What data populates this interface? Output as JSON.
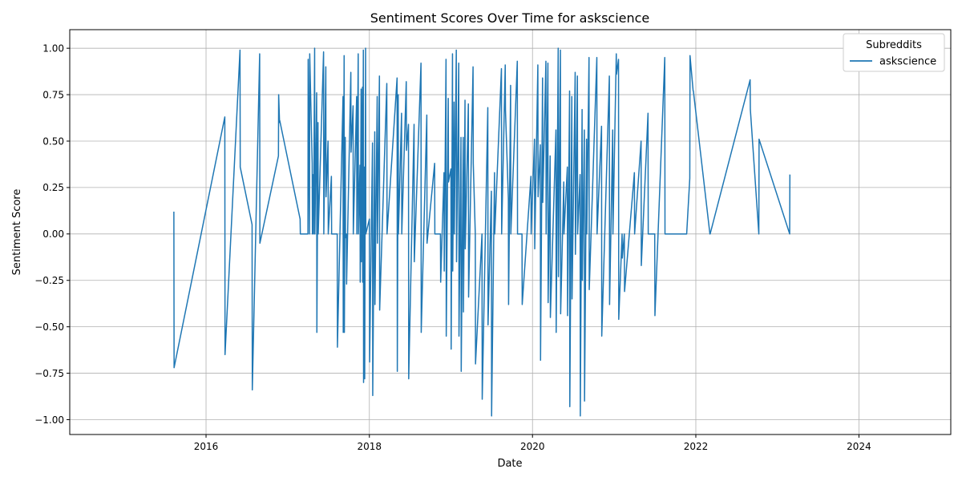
{
  "chart_data": {
    "type": "line",
    "title": "Sentiment Scores Over Time for askscience",
    "xlabel": "Date",
    "ylabel": "Sentiment Score",
    "x_axis": "date",
    "xlim": [
      "2014-05-01",
      "2025-02-15"
    ],
    "ylim": [
      -1.08,
      1.1
    ],
    "xticks": [
      {
        "value": "2016-01-01",
        "label": "2016"
      },
      {
        "value": "2018-01-01",
        "label": "2018"
      },
      {
        "value": "2020-01-01",
        "label": "2020"
      },
      {
        "value": "2022-01-01",
        "label": "2022"
      },
      {
        "value": "2024-01-01",
        "label": "2024"
      }
    ],
    "yticks": [
      {
        "value": -1.0,
        "label": "−1.00"
      },
      {
        "value": -0.75,
        "label": "−0.75"
      },
      {
        "value": -0.5,
        "label": "−0.50"
      },
      {
        "value": -0.25,
        "label": "−0.25"
      },
      {
        "value": 0.0,
        "label": "0.00"
      },
      {
        "value": 0.25,
        "label": "0.25"
      },
      {
        "value": 0.5,
        "label": "0.50"
      },
      {
        "value": 0.75,
        "label": "0.75"
      },
      {
        "value": 1.0,
        "label": "1.00"
      }
    ],
    "grid": true,
    "legend": {
      "title": "Subreddits",
      "placement": "top-right"
    },
    "series": [
      {
        "name": "askscience",
        "color": "#1f77b4",
        "points": [
          [
            "2015-08-10",
            0.12
          ],
          [
            "2015-08-11",
            -0.72
          ],
          [
            "2016-03-25",
            0.63
          ],
          [
            "2016-03-26",
            -0.65
          ],
          [
            "2016-06-01",
            0.99
          ],
          [
            "2016-06-02",
            0.36
          ],
          [
            "2016-07-25",
            0.05
          ],
          [
            "2016-07-26",
            -0.84
          ],
          [
            "2016-08-28",
            0.97
          ],
          [
            "2016-08-29",
            -0.05
          ],
          [
            "2016-11-20",
            0.42
          ],
          [
            "2016-11-21",
            0.75
          ],
          [
            "2016-11-25",
            0.6
          ],
          [
            "2016-11-26",
            0.61
          ],
          [
            "2017-02-25",
            0.08
          ],
          [
            "2017-02-26",
            0.0
          ],
          [
            "2017-04-01",
            0.0
          ],
          [
            "2017-04-02",
            0.94
          ],
          [
            "2017-04-08",
            0.0
          ],
          [
            "2017-04-09",
            0.97
          ],
          [
            "2017-04-20",
            0.38
          ],
          [
            "2017-04-21",
            0.0
          ],
          [
            "2017-04-25",
            0.32
          ],
          [
            "2017-04-26",
            0.0
          ],
          [
            "2017-05-01",
            1.0
          ],
          [
            "2017-05-02",
            0.0
          ],
          [
            "2017-05-10",
            0.76
          ],
          [
            "2017-05-11",
            -0.53
          ],
          [
            "2017-05-16",
            0.6
          ],
          [
            "2017-05-17",
            0.0
          ],
          [
            "2017-06-10",
            0.98
          ],
          [
            "2017-06-11",
            0.0
          ],
          [
            "2017-06-20",
            0.9
          ],
          [
            "2017-06-21",
            0.2
          ],
          [
            "2017-06-30",
            0.5
          ],
          [
            "2017-07-01",
            0.0
          ],
          [
            "2017-07-15",
            0.31
          ],
          [
            "2017-07-16",
            0.0
          ],
          [
            "2017-08-10",
            0.0
          ],
          [
            "2017-08-11",
            -0.61
          ],
          [
            "2017-09-05",
            0.74
          ],
          [
            "2017-09-06",
            -0.53
          ],
          [
            "2017-09-10",
            0.96
          ],
          [
            "2017-09-11",
            -0.53
          ],
          [
            "2017-09-15",
            0.52
          ],
          [
            "2017-09-16",
            -0.02
          ],
          [
            "2017-09-20",
            0.0
          ],
          [
            "2017-09-21",
            -0.27
          ],
          [
            "2017-10-10",
            0.87
          ],
          [
            "2017-10-11",
            0.44
          ],
          [
            "2017-10-20",
            0.69
          ],
          [
            "2017-10-21",
            0.0
          ],
          [
            "2017-11-05",
            0.74
          ],
          [
            "2017-11-06",
            0.0
          ],
          [
            "2017-11-12",
            0.97
          ],
          [
            "2017-11-13",
            0.0
          ],
          [
            "2017-11-20",
            0.37
          ],
          [
            "2017-11-21",
            -0.26
          ],
          [
            "2017-11-25",
            0.78
          ],
          [
            "2017-11-26",
            -0.15
          ],
          [
            "2017-12-01",
            0.79
          ],
          [
            "2017-12-02",
            -0.26
          ],
          [
            "2017-12-05",
            0.99
          ],
          [
            "2017-12-06",
            -0.8
          ],
          [
            "2017-12-10",
            0.36
          ],
          [
            "2017-12-11",
            -0.78
          ],
          [
            "2017-12-15",
            1.0
          ],
          [
            "2017-12-16",
            0.0
          ],
          [
            "2018-01-01",
            0.08
          ],
          [
            "2018-01-02",
            -0.69
          ],
          [
            "2018-01-15",
            0.49
          ],
          [
            "2018-01-16",
            -0.87
          ],
          [
            "2018-01-25",
            0.55
          ],
          [
            "2018-01-26",
            -0.38
          ],
          [
            "2018-02-05",
            0.74
          ],
          [
            "2018-02-06",
            -0.05
          ],
          [
            "2018-02-15",
            0.85
          ],
          [
            "2018-02-16",
            -0.41
          ],
          [
            "2018-03-20",
            0.81
          ],
          [
            "2018-03-21",
            0.0
          ],
          [
            "2018-05-05",
            0.84
          ],
          [
            "2018-05-06",
            -0.74
          ],
          [
            "2018-05-10",
            0.75
          ],
          [
            "2018-05-11",
            0.0
          ],
          [
            "2018-05-25",
            0.65
          ],
          [
            "2018-05-26",
            0.0
          ],
          [
            "2018-06-15",
            0.82
          ],
          [
            "2018-06-16",
            0.45
          ],
          [
            "2018-06-25",
            0.59
          ],
          [
            "2018-06-26",
            -0.78
          ],
          [
            "2018-07-20",
            0.59
          ],
          [
            "2018-07-21",
            -0.15
          ],
          [
            "2018-08-20",
            0.92
          ],
          [
            "2018-08-21",
            -0.53
          ],
          [
            "2018-09-15",
            0.64
          ],
          [
            "2018-09-16",
            -0.05
          ],
          [
            "2018-10-20",
            0.38
          ],
          [
            "2018-10-21",
            0.0
          ],
          [
            "2018-11-15",
            0.0
          ],
          [
            "2018-11-16",
            -0.26
          ],
          [
            "2018-12-01",
            0.33
          ],
          [
            "2018-12-02",
            -0.2
          ],
          [
            "2018-12-10",
            0.94
          ],
          [
            "2018-12-11",
            -0.55
          ],
          [
            "2018-12-20",
            0.73
          ],
          [
            "2018-12-21",
            0.28
          ],
          [
            "2019-01-01",
            0.35
          ],
          [
            "2019-01-02",
            -0.62
          ],
          [
            "2019-01-08",
            0.97
          ],
          [
            "2019-01-09",
            -0.2
          ],
          [
            "2019-01-15",
            0.71
          ],
          [
            "2019-01-16",
            0.0
          ],
          [
            "2019-01-25",
            0.99
          ],
          [
            "2019-01-26",
            -0.15
          ],
          [
            "2019-02-05",
            0.92
          ],
          [
            "2019-02-06",
            -0.55
          ],
          [
            "2019-02-15",
            0.52
          ],
          [
            "2019-02-16",
            -0.74
          ],
          [
            "2019-02-25",
            0.52
          ],
          [
            "2019-02-26",
            -0.42
          ],
          [
            "2019-03-05",
            0.72
          ],
          [
            "2019-03-06",
            -0.08
          ],
          [
            "2019-03-20",
            0.7
          ],
          [
            "2019-03-21",
            -0.34
          ],
          [
            "2019-04-10",
            0.9
          ],
          [
            "2019-04-11",
            0.38
          ],
          [
            "2019-04-20",
            0.0
          ],
          [
            "2019-04-21",
            -0.7
          ],
          [
            "2019-05-20",
            0.0
          ],
          [
            "2019-05-21",
            -0.89
          ],
          [
            "2019-06-15",
            0.68
          ],
          [
            "2019-06-16",
            -0.49
          ],
          [
            "2019-07-01",
            0.23
          ],
          [
            "2019-07-02",
            -0.98
          ],
          [
            "2019-07-15",
            0.33
          ],
          [
            "2019-07-16",
            0.0
          ],
          [
            "2019-08-15",
            0.89
          ],
          [
            "2019-08-16",
            0.0
          ],
          [
            "2019-09-01",
            0.91
          ],
          [
            "2019-09-02",
            0.67
          ],
          [
            "2019-09-15",
            0.19
          ],
          [
            "2019-09-16",
            -0.38
          ],
          [
            "2019-09-25",
            0.8
          ],
          [
            "2019-09-26",
            0.0
          ],
          [
            "2019-10-25",
            0.93
          ],
          [
            "2019-10-26",
            0.0
          ],
          [
            "2019-11-15",
            0.0
          ],
          [
            "2019-11-16",
            -0.38
          ],
          [
            "2019-12-25",
            0.31
          ],
          [
            "2019-12-26",
            0.0
          ],
          [
            "2020-01-10",
            0.51
          ],
          [
            "2020-01-11",
            -0.08
          ],
          [
            "2020-01-25",
            0.91
          ],
          [
            "2020-01-26",
            0.2
          ],
          [
            "2020-02-05",
            0.48
          ],
          [
            "2020-02-06",
            -0.68
          ],
          [
            "2020-02-15",
            0.84
          ],
          [
            "2020-02-16",
            0.17
          ],
          [
            "2020-03-01",
            0.93
          ],
          [
            "2020-03-02",
            0.0
          ],
          [
            "2020-03-10",
            0.92
          ],
          [
            "2020-03-11",
            -0.37
          ],
          [
            "2020-03-20",
            0.42
          ],
          [
            "2020-03-21",
            -0.45
          ],
          [
            "2020-04-15",
            0.56
          ],
          [
            "2020-04-16",
            -0.53
          ],
          [
            "2020-04-25",
            1.0
          ],
          [
            "2020-04-26",
            -0.23
          ],
          [
            "2020-05-05",
            0.99
          ],
          [
            "2020-05-06",
            -0.43
          ],
          [
            "2020-05-20",
            0.28
          ],
          [
            "2020-05-21",
            0.0
          ],
          [
            "2020-06-05",
            0.36
          ],
          [
            "2020-06-06",
            -0.44
          ],
          [
            "2020-06-15",
            0.77
          ],
          [
            "2020-06-16",
            -0.93
          ],
          [
            "2020-06-25",
            0.74
          ],
          [
            "2020-06-26",
            -0.35
          ],
          [
            "2020-07-10",
            0.87
          ],
          [
            "2020-07-11",
            -0.11
          ],
          [
            "2020-07-20",
            0.85
          ],
          [
            "2020-07-21",
            0.0
          ],
          [
            "2020-08-01",
            0.32
          ],
          [
            "2020-08-02",
            -0.98
          ],
          [
            "2020-08-10",
            0.67
          ],
          [
            "2020-08-11",
            -0.25
          ],
          [
            "2020-08-20",
            0.56
          ],
          [
            "2020-08-21",
            -0.9
          ],
          [
            "2020-08-30",
            0.51
          ],
          [
            "2020-08-31",
            0.0
          ],
          [
            "2020-09-10",
            0.95
          ],
          [
            "2020-09-11",
            -0.3
          ],
          [
            "2020-10-15",
            0.95
          ],
          [
            "2020-10-16",
            0.0
          ],
          [
            "2020-11-05",
            0.58
          ],
          [
            "2020-11-06",
            -0.55
          ],
          [
            "2020-12-10",
            0.85
          ],
          [
            "2020-12-11",
            -0.38
          ],
          [
            "2020-12-25",
            0.56
          ],
          [
            "2020-12-26",
            0.0
          ],
          [
            "2021-01-10",
            0.97
          ],
          [
            "2021-01-11",
            0.86
          ],
          [
            "2021-01-20",
            0.94
          ],
          [
            "2021-01-21",
            -0.46
          ],
          [
            "2021-02-05",
            0.0
          ],
          [
            "2021-02-06",
            -0.13
          ],
          [
            "2021-02-15",
            0.0
          ],
          [
            "2021-02-16",
            -0.31
          ],
          [
            "2021-04-01",
            0.33
          ],
          [
            "2021-04-02",
            0.0
          ],
          [
            "2021-05-01",
            0.5
          ],
          [
            "2021-05-02",
            -0.17
          ],
          [
            "2021-06-01",
            0.65
          ],
          [
            "2021-06-02",
            0.0
          ],
          [
            "2021-07-01",
            0.0
          ],
          [
            "2021-07-02",
            -0.44
          ],
          [
            "2021-08-15",
            0.95
          ],
          [
            "2021-08-16",
            0.0
          ],
          [
            "2021-11-20",
            0.0
          ],
          [
            "2021-11-21",
            0.0
          ],
          [
            "2021-12-05",
            0.3
          ],
          [
            "2021-12-06",
            0.96
          ],
          [
            "2021-12-20",
            0.77
          ],
          [
            "2021-12-21",
            0.77
          ],
          [
            "2022-03-05",
            0.0
          ],
          [
            "2022-03-06",
            0.0
          ],
          [
            "2022-09-01",
            0.83
          ],
          [
            "2022-09-02",
            0.67
          ],
          [
            "2022-10-10",
            0.0
          ],
          [
            "2022-10-11",
            0.51
          ],
          [
            "2023-02-25",
            0.0
          ],
          [
            "2023-02-26",
            0.32
          ]
        ]
      }
    ]
  }
}
